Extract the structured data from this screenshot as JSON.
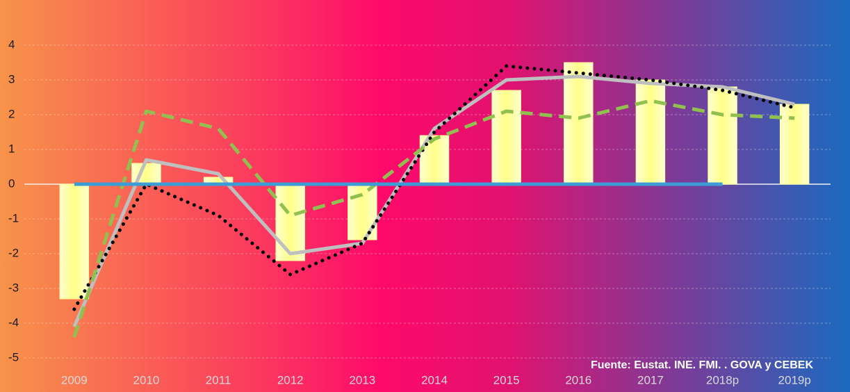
{
  "chart_data": {
    "type": "bar",
    "categories": [
      "2009",
      "2010",
      "2011",
      "2012",
      "2013",
      "2014",
      "2015",
      "2016",
      "2017",
      "2018p",
      "2019p"
    ],
    "values": [
      -3.3,
      0.6,
      0.2,
      -2.2,
      -1.6,
      1.4,
      2.7,
      3.5,
      3.0,
      2.8,
      2.3
    ],
    "color": "#ffff99",
    "series": [
      {
        "color": "#bfbfbf",
        "style": "solid",
        "values": [
          -4.1,
          0.7,
          0.3,
          -2.0,
          -1.7,
          1.6,
          3.0,
          3.1,
          2.9,
          2.8,
          2.3
        ]
      },
      {
        "color": "#000000",
        "style": "dotted",
        "values": [
          -3.6,
          0.0,
          -0.9,
          -2.6,
          -1.7,
          1.5,
          3.4,
          3.2,
          3.0,
          2.7,
          2.2
        ]
      },
      {
        "color": "#92c050",
        "style": "dashed",
        "values": [
          -4.4,
          2.1,
          1.6,
          -0.9,
          -0.3,
          1.3,
          2.1,
          1.9,
          2.4,
          2.0,
          1.9
        ]
      },
      {
        "color": "#3d9bd6",
        "style": "solid",
        "values": [
          0,
          0,
          0,
          0,
          0,
          0,
          0,
          0,
          0,
          0,
          null
        ]
      }
    ],
    "ylim": [
      -5.5,
      5
    ],
    "yticks": [
      -5,
      -4,
      -3,
      -2,
      -1,
      0,
      1,
      2,
      3,
      4
    ],
    "grid": true,
    "annotation": "Fuente: Eustat. INE. FMI. . GOVA  y CEBEK"
  }
}
